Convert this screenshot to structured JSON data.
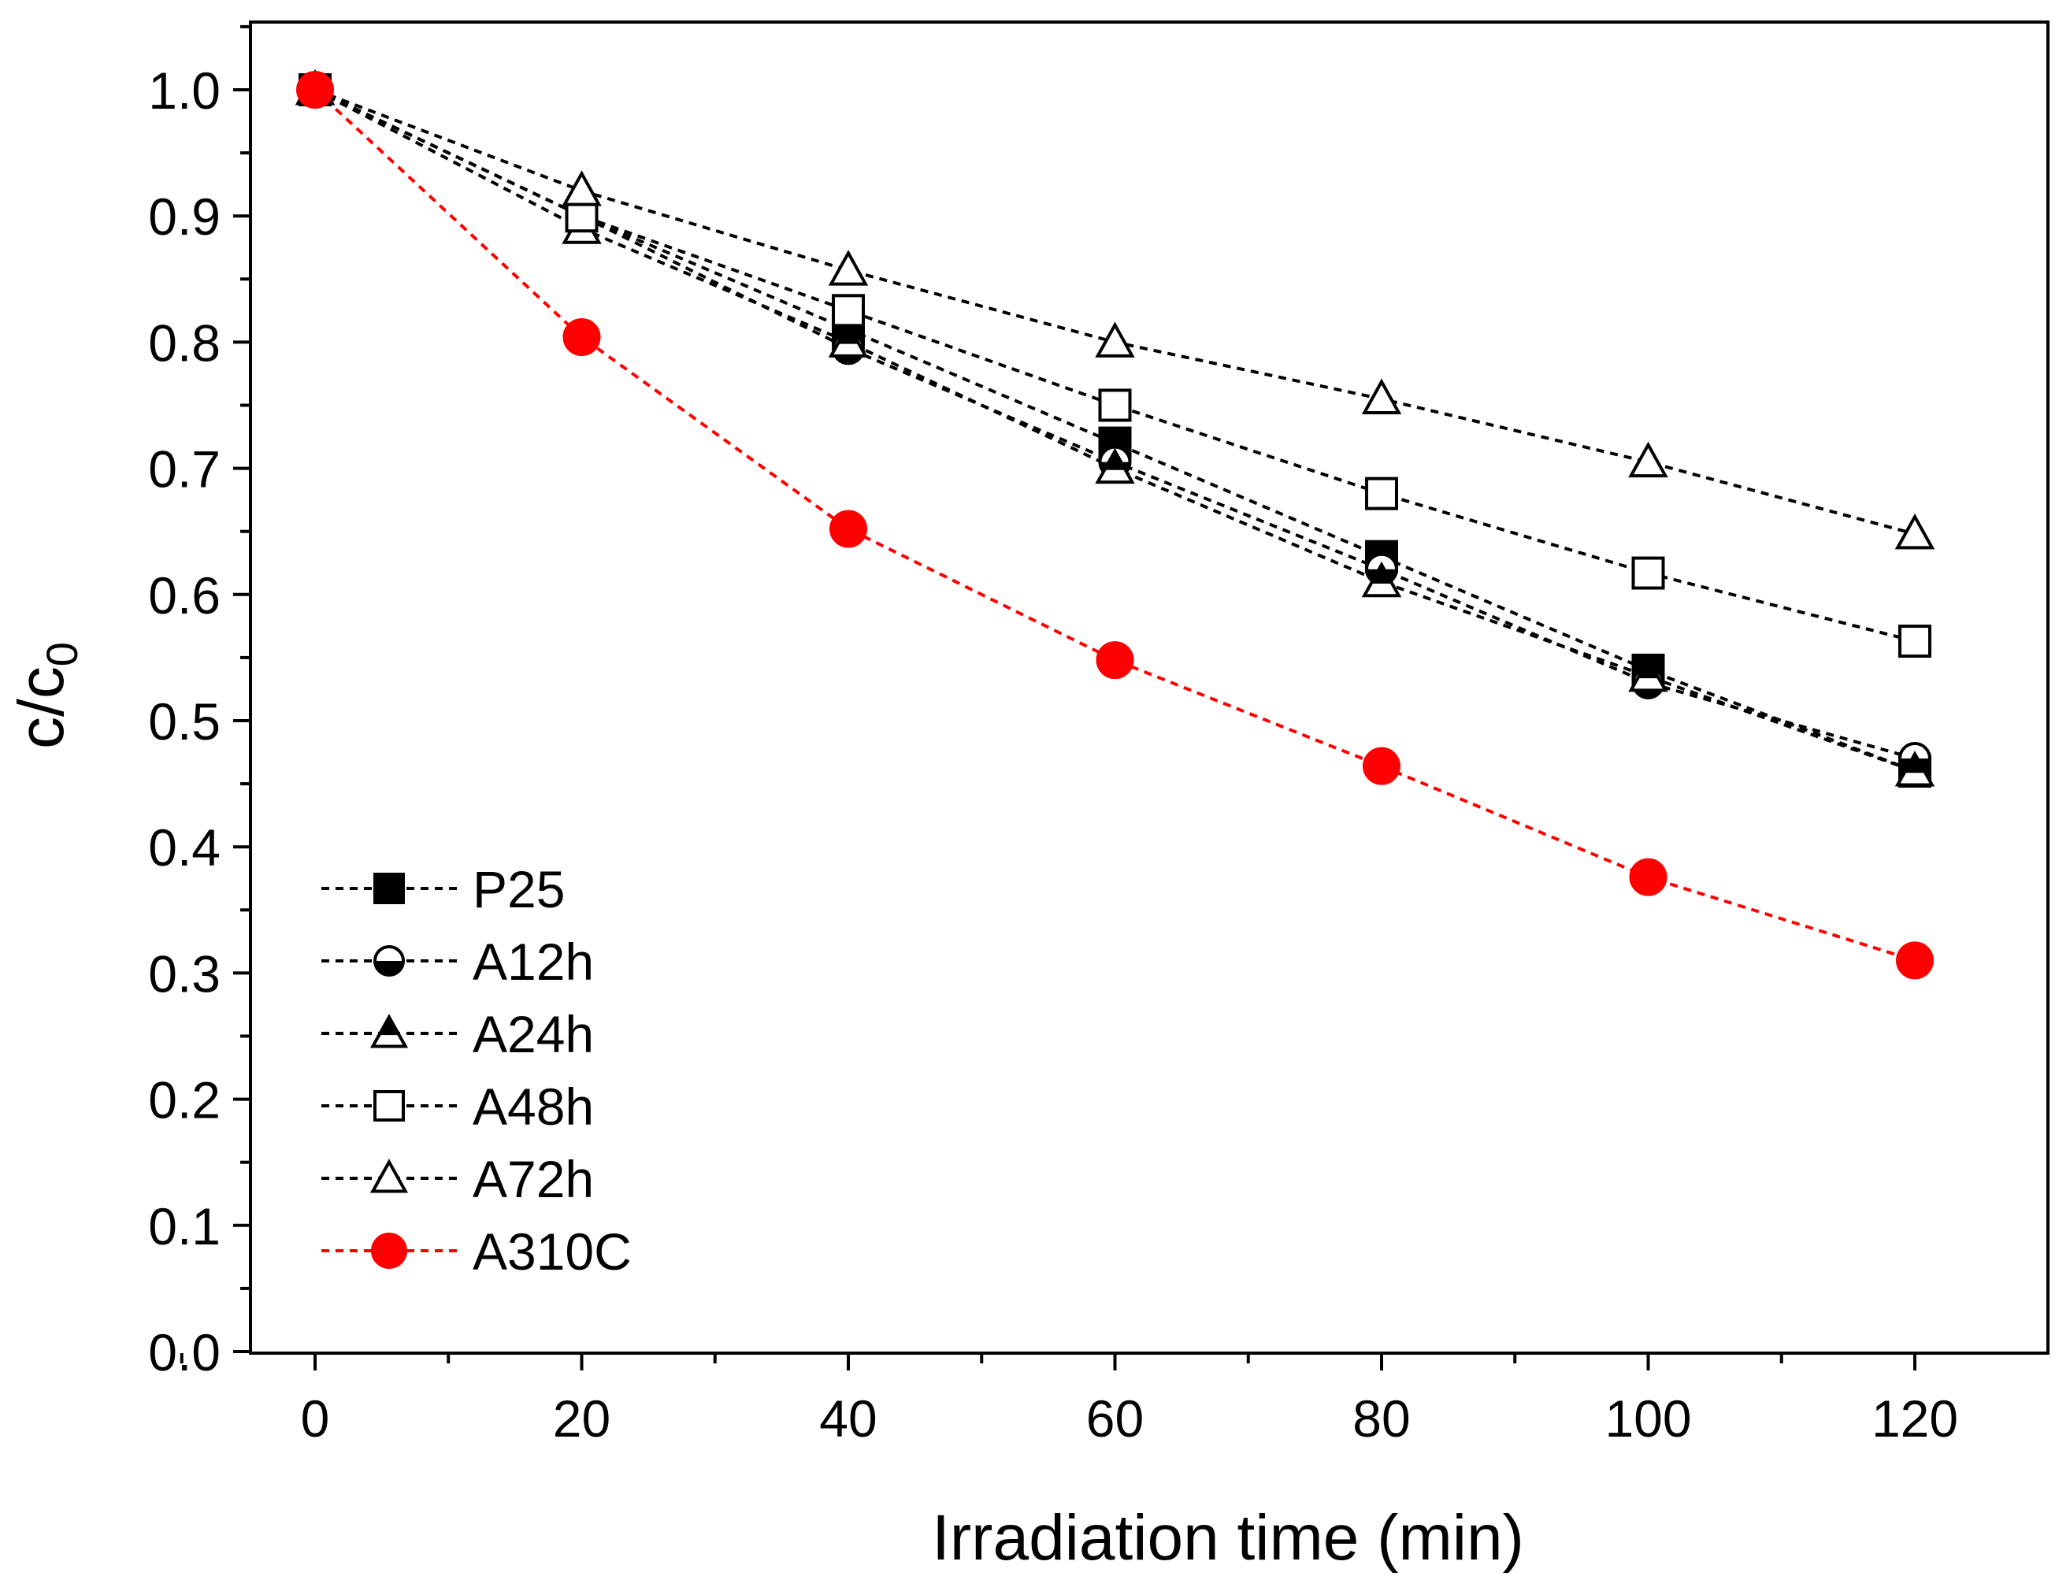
{
  "chart_data": {
    "type": "line",
    "title": "",
    "xlabel": "Irradiation time (min)",
    "ylabel_main": "c/c",
    "ylabel_sub": "0",
    "xlim": [
      -8,
      130
    ],
    "ylim": [
      0.0,
      1.05
    ],
    "x_ticks": [
      0,
      20,
      40,
      60,
      80,
      100,
      120
    ],
    "x_tick_labels": [
      "0",
      "20",
      "40",
      "60",
      "80",
      "100",
      "120"
    ],
    "y_ticks": [
      0.0,
      0.1,
      0.2,
      0.3,
      0.4,
      0.5,
      0.6,
      0.7,
      0.8,
      0.9,
      1.0
    ],
    "y_tick_labels": [
      "0.0",
      "0.1",
      "0.2",
      "0.3",
      "0.4",
      "0.5",
      "0.6",
      "0.7",
      "0.8",
      "0.9",
      "1.0"
    ],
    "grid": false,
    "legend_position": "bottom-left",
    "x": [
      0,
      20,
      40,
      60,
      80,
      100,
      120
    ],
    "series": [
      {
        "name": "P25",
        "marker": "square-filled",
        "color": "#000000",
        "values": [
          1.0,
          0.9,
          0.81,
          0.72,
          0.63,
          0.54,
          0.46
        ]
      },
      {
        "name": "A12h",
        "marker": "circle-half",
        "color": "#000000",
        "values": [
          1.0,
          0.9,
          0.795,
          0.705,
          0.62,
          0.53,
          0.47
        ]
      },
      {
        "name": "A24h",
        "marker": "triangle-half",
        "color": "#000000",
        "values": [
          1.0,
          0.89,
          0.8,
          0.7,
          0.61,
          0.535,
          0.46
        ]
      },
      {
        "name": "A48h",
        "marker": "square-open",
        "color": "#000000",
        "values": [
          1.0,
          0.9,
          0.825,
          0.75,
          0.68,
          0.617,
          0.563
        ]
      },
      {
        "name": "A72h",
        "marker": "triangle-open",
        "color": "#000000",
        "values": [
          1.0,
          0.92,
          0.857,
          0.8,
          0.755,
          0.705,
          0.648
        ]
      },
      {
        "name": "A310C",
        "marker": "circle-filled",
        "color": "#ff0000",
        "values": [
          1.0,
          0.804,
          0.652,
          0.548,
          0.464,
          0.376,
          0.31
        ]
      }
    ]
  }
}
